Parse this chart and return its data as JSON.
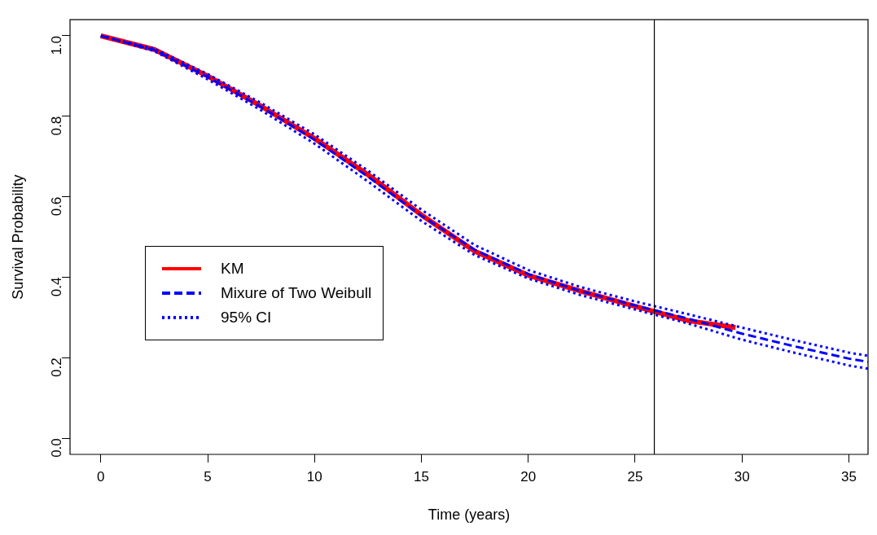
{
  "chart_data": {
    "type": "line",
    "xlabel": "Time (years)",
    "ylabel": "Survival Probability",
    "xlim": [
      -1.44,
      35.9
    ],
    "ylim": [
      -0.04,
      1.04
    ],
    "xticks": [
      0,
      5,
      10,
      15,
      20,
      25,
      30,
      35
    ],
    "yticks": [
      {
        "value": 0,
        "label": "0.0"
      },
      0.2,
      0.4,
      0.6,
      0.8,
      {
        "value": 1,
        "label": "1.0"
      }
    ],
    "grid": false,
    "legend": "left",
    "marker": "none",
    "ref_lines": [
      {
        "axis": "x",
        "value": 25.9,
        "color": "#000000"
      }
    ],
    "series": [
      {
        "name": "KM",
        "color": "#ff0000",
        "line_style": "solid",
        "x": [
          0,
          2.5,
          5,
          7.5,
          10,
          12.5,
          15,
          17.5,
          20,
          22.5,
          25,
          27.5,
          29.7
        ],
        "values": [
          1.0,
          0.966,
          0.9,
          0.825,
          0.745,
          0.655,
          0.555,
          0.465,
          0.405,
          0.365,
          0.328,
          0.292,
          0.275
        ]
      },
      {
        "name": "Mixure of Two Weibull",
        "color": "#0000ff",
        "line_style": "dashed",
        "x": [
          0,
          2.5,
          5,
          7.5,
          10,
          12.5,
          15,
          17.5,
          20,
          22.5,
          25,
          27.5,
          30,
          32.5,
          35,
          35.9
        ],
        "values": [
          1.0,
          0.965,
          0.898,
          0.823,
          0.742,
          0.65,
          0.553,
          0.468,
          0.408,
          0.365,
          0.33,
          0.297,
          0.26,
          0.228,
          0.198,
          0.19
        ]
      },
      {
        "name": "95% CI",
        "color": "#0000ff",
        "line_style": "dotted",
        "x": [
          0,
          2.5,
          5,
          7.5,
          10,
          12.5,
          15,
          17.5,
          20,
          22.5,
          25,
          27.5,
          30,
          32.5,
          35,
          35.9
        ],
        "values": [
          1.0,
          0.968,
          0.905,
          0.833,
          0.755,
          0.665,
          0.568,
          0.48,
          0.418,
          0.375,
          0.34,
          0.308,
          0.275,
          0.243,
          0.213,
          0.205
        ]
      },
      {
        "color": "#0000ff",
        "line_style": "dotted",
        "x": [
          0,
          2.5,
          5,
          7.5,
          10,
          12.5,
          15,
          17.5,
          20,
          22.5,
          25,
          27.5,
          30,
          32.5,
          35,
          35.9
        ],
        "values": [
          1.0,
          0.962,
          0.892,
          0.815,
          0.732,
          0.638,
          0.54,
          0.455,
          0.397,
          0.355,
          0.32,
          0.285,
          0.245,
          0.212,
          0.181,
          0.173
        ]
      }
    ]
  }
}
